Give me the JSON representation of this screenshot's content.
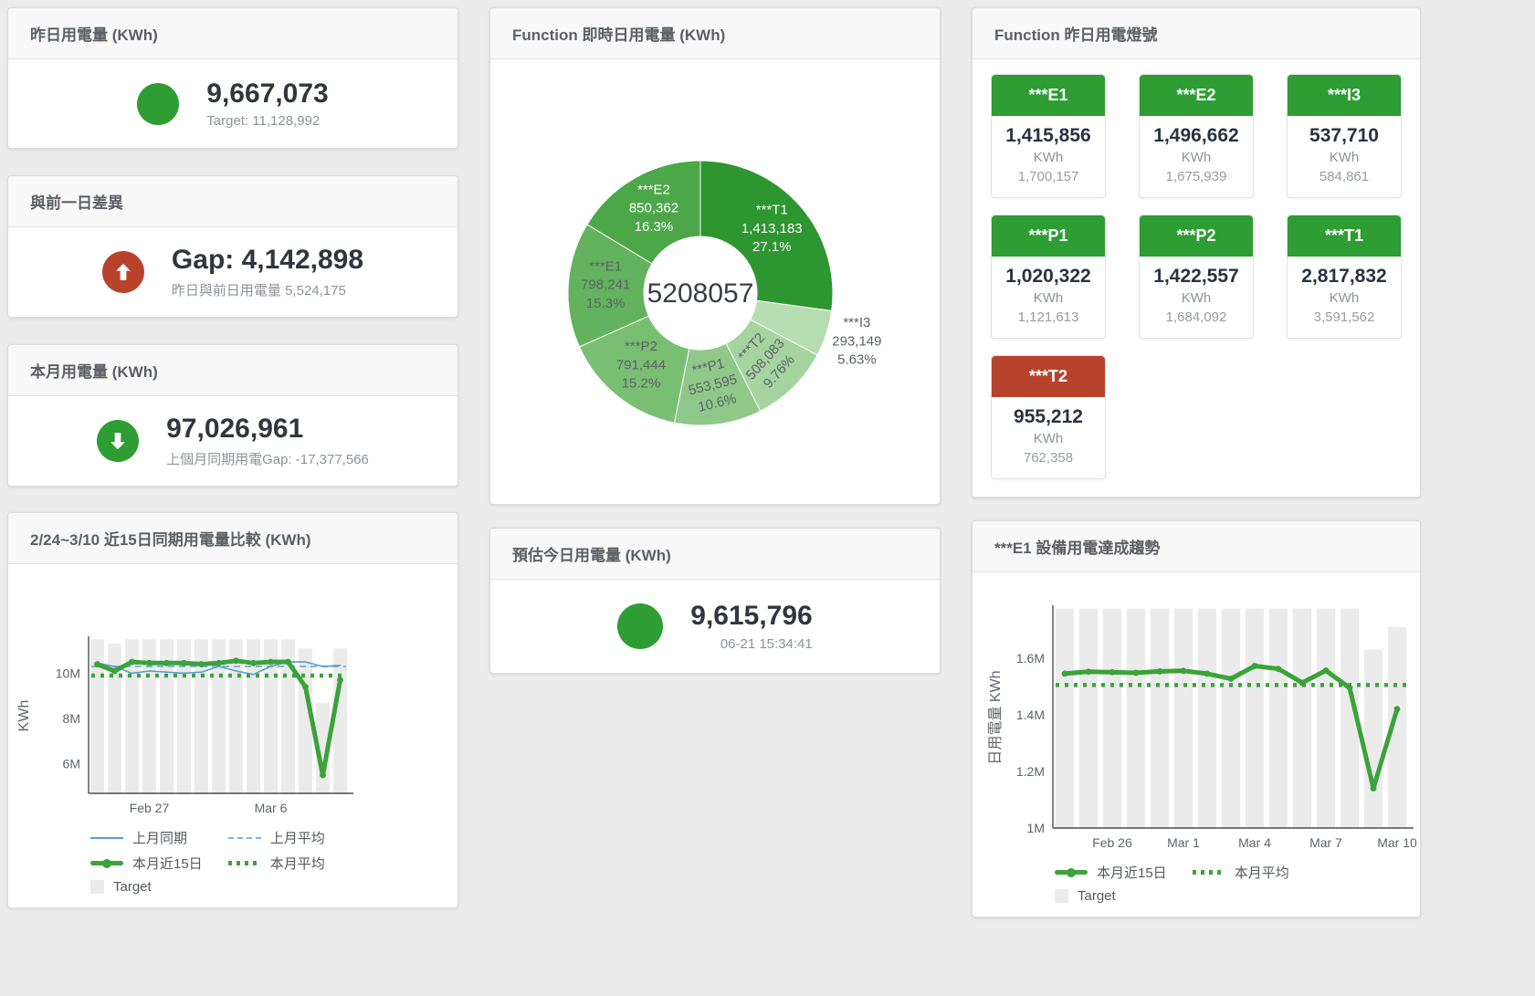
{
  "palette": {
    "green": "#2e9d33",
    "red": "#b8432c",
    "line_green": "#3aa33a",
    "line_blue": "#5b9bd5",
    "dashed_blue": "#7fb2dc",
    "bar_gray": "#ebebeb"
  },
  "cards": {
    "yesterday": {
      "title": "昨日用電量 (KWh)",
      "value": "9,667,073",
      "sub": "Target: 11,128,992"
    },
    "gap": {
      "title": "與前一日差異",
      "value": "Gap: 4,142,898",
      "sub": "昨日與前日用電量 5,524,175"
    },
    "month": {
      "title": "本月用電量 (KWh)",
      "value": "97,026,961",
      "sub": "上個月同期用電Gap: -17,377,566"
    },
    "compare": {
      "title": "2/24~3/10 近15日同期用電量比較 (KWh)"
    },
    "donut": {
      "title": "Function 即時日用電量 (KWh)"
    },
    "estimate": {
      "title": "預估今日用電量 (KWh)",
      "value": "9,615,796",
      "sub": "06-21 15:34:41"
    },
    "lights": {
      "title": "Function 昨日用電燈號"
    },
    "e1trend": {
      "title": "***E1 設備用電達成趨勢"
    }
  },
  "lights": {
    "unit": "KWh",
    "tiles": [
      {
        "name": "***E1",
        "value": "1,415,856",
        "target": "1,700,157",
        "status": "green"
      },
      {
        "name": "***E2",
        "value": "1,496,662",
        "target": "1,675,939",
        "status": "green"
      },
      {
        "name": "***I3",
        "value": "537,710",
        "target": "584,861",
        "status": "green"
      },
      {
        "name": "***P1",
        "value": "1,020,322",
        "target": "1,121,613",
        "status": "green"
      },
      {
        "name": "***P2",
        "value": "1,422,557",
        "target": "1,684,092",
        "status": "green"
      },
      {
        "name": "***T1",
        "value": "2,817,832",
        "target": "3,591,562",
        "status": "green"
      },
      {
        "name": "***T2",
        "value": "955,212",
        "target": "762,358",
        "status": "red"
      }
    ]
  },
  "chart_data": [
    {
      "type": "pie",
      "panel": "donut",
      "title": "Function 即時日用電量 (KWh)",
      "center_total": "5208057",
      "slices": [
        {
          "name": "***T1",
          "value": 1413183,
          "value_label": "1,413,183",
          "percent": 27.1,
          "percent_label": "27.1%",
          "color": "#2d9630",
          "label_color": "white"
        },
        {
          "name": "***I3",
          "value": 293149,
          "value_label": "293,149",
          "percent": 5.63,
          "percent_label": "5.63%",
          "color": "#b7ddb2",
          "label_color": "dark",
          "outside": true
        },
        {
          "name": "***T2",
          "value": 508083,
          "value_label": "508,083",
          "percent": 9.76,
          "percent_label": "9.76%",
          "color": "#a6d4a0",
          "label_color": "dark",
          "rotate": -48
        },
        {
          "name": "***P1",
          "value": 553595,
          "value_label": "553,595",
          "percent": 10.6,
          "percent_label": "10.6%",
          "color": "#8fc889",
          "label_color": "dark",
          "rotate": -14
        },
        {
          "name": "***P2",
          "value": 791444,
          "value_label": "791,444",
          "percent": 15.2,
          "percent_label": "15.2%",
          "color": "#79bf73",
          "label_color": "dark"
        },
        {
          "name": "***E1",
          "value": 798241,
          "value_label": "798,241",
          "percent": 15.3,
          "percent_label": "15.3%",
          "color": "#63b25e",
          "label_color": "dark"
        },
        {
          "name": "***E2",
          "value": 850362,
          "value_label": "850,362",
          "percent": 16.3,
          "percent_label": "16.3%",
          "color": "#4ca748",
          "label_color": "white"
        }
      ]
    },
    {
      "type": "line",
      "panel": "compare",
      "title": "2/24~3/10 近15日同期用電量比較 (KWh)",
      "ylabel": "KWh",
      "ylim": [
        4.7,
        11.55
      ],
      "yticks": [
        6,
        8,
        10
      ],
      "ytick_labels": [
        "6M",
        "8M",
        "10M"
      ],
      "x_days": 15,
      "x_range": [
        "2/24",
        "3/10"
      ],
      "xticks": [
        {
          "index": 3,
          "label": "Feb 27"
        },
        {
          "index": 10,
          "label": "Mar 6"
        }
      ],
      "target": {
        "name": "Target",
        "values": [
          11.5,
          11.3,
          11.5,
          11.5,
          11.5,
          11.5,
          11.5,
          11.5,
          11.5,
          11.5,
          11.5,
          11.5,
          11.1,
          8.7,
          11.1
        ]
      },
      "series": [
        {
          "name": "上月同期",
          "style": "thin",
          "color": "#5b9bd5",
          "values": [
            10.45,
            10.3,
            10.0,
            10.1,
            10.05,
            10.0,
            10.05,
            10.3,
            10.1,
            9.95,
            10.3,
            10.5,
            10.5,
            10.3,
            10.35
          ]
        },
        {
          "name": "上月平均",
          "style": "dashed",
          "color": "#7fb2dc",
          "const": 10.3
        },
        {
          "name": "本月近15日",
          "style": "thick",
          "color": "#3aa33a",
          "values": [
            10.4,
            10.1,
            10.5,
            10.45,
            10.45,
            10.45,
            10.4,
            10.45,
            10.55,
            10.45,
            10.5,
            10.5,
            9.4,
            5.5,
            9.7
          ]
        },
        {
          "name": "本月平均",
          "style": "dotted",
          "color": "#3aa33a",
          "const": 9.9
        }
      ]
    },
    {
      "type": "line",
      "panel": "e1trend",
      "title": "***E1 設備用電達成趨勢",
      "ylabel": "日用電量 KWh",
      "ylim": [
        1.0,
        1.78
      ],
      "yticks": [
        1,
        1.2,
        1.4,
        1.6
      ],
      "ytick_labels": [
        "1M",
        "1.2M",
        "1.4M",
        "1.6M"
      ],
      "x_days": 15,
      "xticks": [
        {
          "index": 2,
          "label": "Feb 26"
        },
        {
          "index": 5,
          "label": "Mar 1"
        },
        {
          "index": 8,
          "label": "Mar 4"
        },
        {
          "index": 11,
          "label": "Mar 7"
        },
        {
          "index": 14,
          "label": "Mar 10"
        }
      ],
      "target": {
        "name": "Target",
        "values": [
          1.775,
          1.775,
          1.775,
          1.775,
          1.775,
          1.775,
          1.775,
          1.775,
          1.775,
          1.775,
          1.775,
          1.775,
          1.775,
          1.63,
          1.71
        ]
      },
      "series": [
        {
          "name": "本月近15日",
          "style": "thick",
          "color": "#3aa33a",
          "values": [
            1.545,
            1.552,
            1.55,
            1.548,
            1.553,
            1.555,
            1.545,
            1.527,
            1.572,
            1.562,
            1.513,
            1.556,
            1.495,
            1.14,
            1.42
          ]
        },
        {
          "name": "本月平均",
          "style": "dotted",
          "color": "#3aa33a",
          "const": 1.505
        }
      ]
    }
  ]
}
